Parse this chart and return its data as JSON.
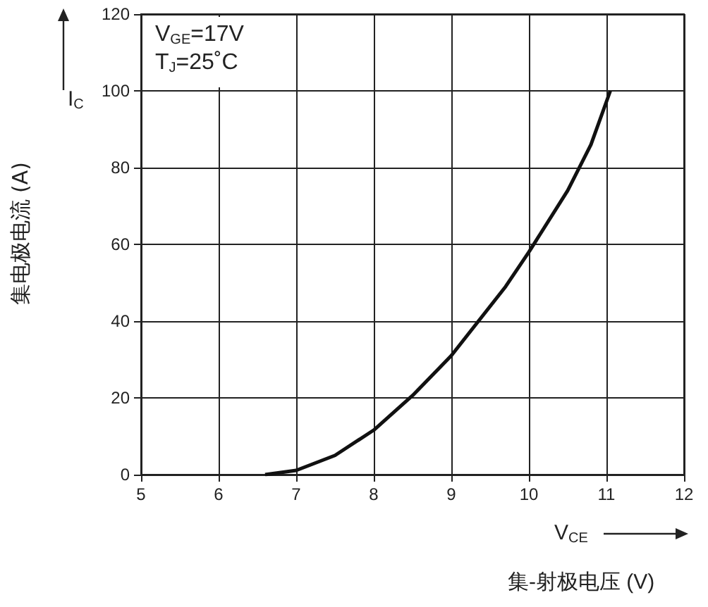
{
  "chart_data": {
    "type": "line",
    "xlabel": "集-射极电压 (V)",
    "ylabel": "集电极电流 (A)",
    "annotations": [
      "V$_{GE}$=17V",
      "T$_{J}$=25˚C",
      "I$_{C}$",
      "V$_{CE}$"
    ],
    "x": [
      6.6,
      7,
      7.5,
      8,
      8.5,
      9,
      9.35,
      9.7,
      10,
      10.5,
      10.8,
      11.05
    ],
    "series": [
      {
        "color": "#111111",
        "values": [
          0,
          1.1,
          5,
          11.6,
          20.6,
          31,
          40,
          49,
          58,
          74,
          86,
          100
        ]
      }
    ],
    "xlim": [
      5,
      12
    ],
    "xticks": [
      5,
      6,
      7,
      8,
      9,
      10,
      11,
      12
    ],
    "ylim": [
      0,
      120
    ],
    "yticks": [
      0,
      20,
      40,
      60,
      80,
      100,
      120
    ],
    "grid": true,
    "marker": "none",
    "line_style": "solid"
  }
}
